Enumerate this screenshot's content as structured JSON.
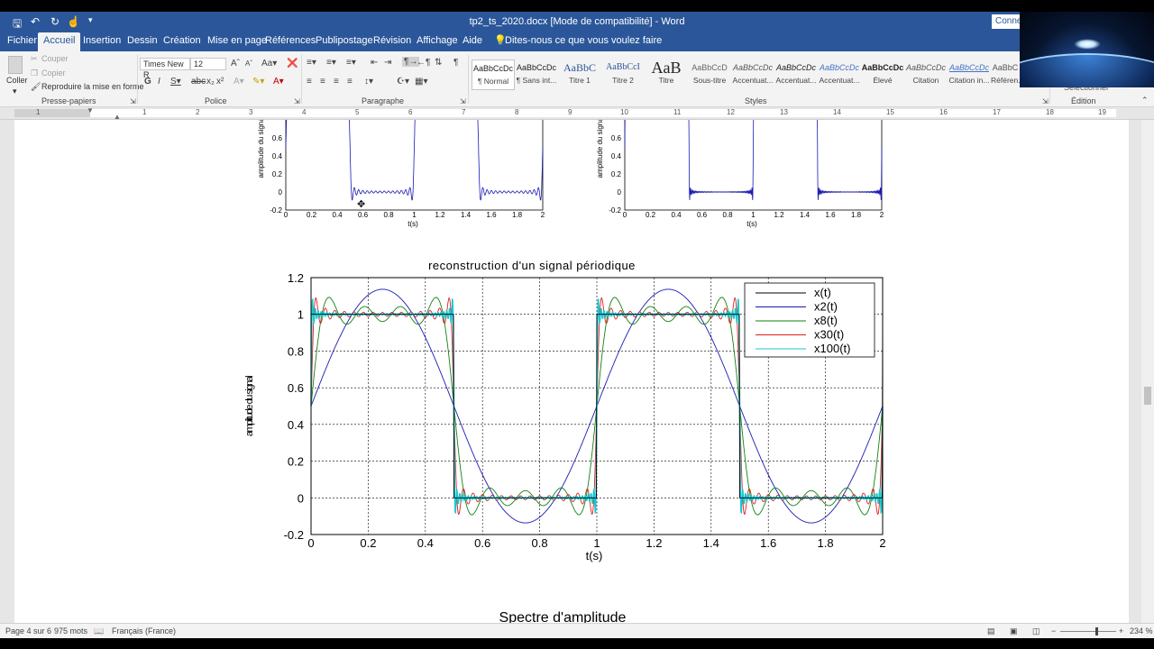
{
  "app": {
    "doc_title": "tp2_ts_2020.docx [Mode de compatibilité]  -  Word",
    "connect_label": "Connex"
  },
  "tabs": [
    "Fichier",
    "Accueil",
    "Insertion",
    "Dessin",
    "Création",
    "Mise en page",
    "Références",
    "Publipostage",
    "Révision",
    "Affichage",
    "Aide"
  ],
  "tell_me": "Dites-nous ce que vous voulez faire",
  "ribbon": {
    "clipboard": {
      "paste": "Coller",
      "cut": "Couper",
      "copy": "Copier",
      "format_painter": "Reproduire la mise en forme",
      "group_label": "Presse-papiers"
    },
    "font": {
      "name": "Times New R",
      "size": "12",
      "group_label": "Police"
    },
    "paragraph": {
      "group_label": "Paragraphe"
    },
    "styles": {
      "group_label": "Styles",
      "items": [
        {
          "preview": "AaBbCcDc",
          "name": "¶ Normal"
        },
        {
          "preview": "AaBbCcDc",
          "name": "¶ Sans int..."
        },
        {
          "preview": "AaBbC",
          "name": "Titre 1"
        },
        {
          "preview": "AaBbCcI",
          "name": "Titre 2"
        },
        {
          "preview": "AaB",
          "name": "Titre"
        },
        {
          "preview": "AaBbCcD",
          "name": "Sous-titre"
        },
        {
          "preview": "AaBbCcDc",
          "name": "Accentuat..."
        },
        {
          "preview": "AaBbCcDc",
          "name": "Accentuat..."
        },
        {
          "preview": "AaBbCcDc",
          "name": "Accentuat..."
        },
        {
          "preview": "AaBbCcDc",
          "name": "Élevé"
        },
        {
          "preview": "AaBbCcDc",
          "name": "Citation"
        },
        {
          "preview": "AaBbCcDc",
          "name": "Citation in..."
        },
        {
          "preview": "AaBbC",
          "name": "Référen..."
        }
      ]
    },
    "editing": {
      "group_label": "Édition",
      "select": "Sélectionner"
    }
  },
  "ruler_numbers": [
    "1",
    "1",
    "2",
    "3",
    "4",
    "5",
    "6",
    "7",
    "8",
    "9",
    "10",
    "11",
    "12",
    "13",
    "14",
    "15",
    "16",
    "17",
    "18",
    "19"
  ],
  "top_plots": {
    "ylabel": "amplitude du signal",
    "xlabel": "t(s)",
    "yticks": [
      "0.6",
      "0.4",
      "0.2",
      "0",
      "-0.2"
    ],
    "xticks": [
      "0",
      "0.2",
      "0.4",
      "0.6",
      "0.8",
      "1",
      "1.2",
      "1.4",
      "1.6",
      "1.8",
      "2"
    ]
  },
  "next_heading": "Spectre d'amplitude",
  "chart_data": {
    "type": "line",
    "title": "reconstruction d'un signal périodique",
    "xlabel": "t(s)",
    "ylabel": "amplitude du signal",
    "xlim": [
      0,
      2
    ],
    "ylim": [
      -0.2,
      1.2
    ],
    "xticks": [
      "0",
      "0.2",
      "0.4",
      "0.6",
      "0.8",
      "1",
      "1.2",
      "1.4",
      "1.6",
      "1.8",
      "2"
    ],
    "yticks": [
      "-0.2",
      "0",
      "0.2",
      "0.4",
      "0.6",
      "0.8",
      "1",
      "1.2"
    ],
    "grid": true,
    "legend_position": "top-right",
    "signal": "square wave, period 1 s, high (1) on [0,0.5), low (0) on [0.5,1)",
    "series": [
      {
        "name": "x(t)",
        "color": "#000000",
        "harmonics": 0
      },
      {
        "name": "x2(t)",
        "color": "#1a1ab4",
        "harmonics": 2
      },
      {
        "name": "x8(t)",
        "color": "#128212",
        "harmonics": 8
      },
      {
        "name": "x30(t)",
        "color": "#e02020",
        "harmonics": 30
      },
      {
        "name": "x100(t)",
        "color": "#16c8d2",
        "harmonics": 100
      }
    ]
  },
  "status": {
    "page": "Page 4 sur 6",
    "words": "975 mots",
    "language": "Français (France)",
    "zoom": "234 %"
  }
}
